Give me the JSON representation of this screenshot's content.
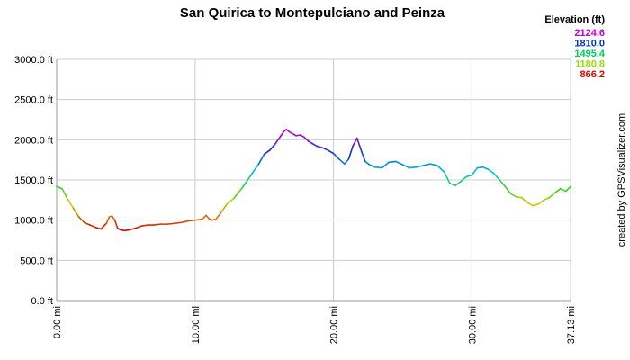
{
  "chart_data": {
    "type": "line",
    "title": "San Quirica to Montepulciano and Peinza",
    "xlabel": "",
    "ylabel": "",
    "xlim": [
      0,
      37.13
    ],
    "ylim": [
      0,
      3000
    ],
    "grid": true,
    "x_ticks": [
      {
        "value": 0,
        "label": "0.00 mi"
      },
      {
        "value": 10,
        "label": "10.00 mi"
      },
      {
        "value": 20,
        "label": "20.00 mi"
      },
      {
        "value": 30,
        "label": "30.00 mi"
      },
      {
        "value": 37.13,
        "label": "37.13 mi"
      }
    ],
    "y_ticks": [
      {
        "value": 0,
        "label": "0.0 ft"
      },
      {
        "value": 500,
        "label": "500.0 ft"
      },
      {
        "value": 1000,
        "label": "1000.0 ft"
      },
      {
        "value": 1500,
        "label": "1500.0 ft"
      },
      {
        "value": 2000,
        "label": "2000.0 ft"
      },
      {
        "value": 2500,
        "label": "2500.0 ft"
      },
      {
        "value": 3000,
        "label": "3000.0 ft"
      }
    ],
    "legend": {
      "title": "Elevation (ft)",
      "placement": "top-right",
      "entries": [
        {
          "label": "2124.6",
          "color": "#cc00cc"
        },
        {
          "label": "1810.0",
          "color": "#0033cc"
        },
        {
          "label": "1495.4",
          "color": "#00cc66"
        },
        {
          "label": "1180.8",
          "color": "#99dd00"
        },
        {
          "label": "866.2",
          "color": "#dd0000"
        }
      ]
    },
    "series": [
      {
        "x": [
          0,
          0.4,
          0.8,
          1.2,
          1.6,
          2.0,
          2.4,
          2.8,
          3.2,
          3.6,
          3.8,
          4.0,
          4.2,
          4.4,
          4.6,
          4.9,
          5.3,
          5.7,
          6.2,
          6.6,
          7.0,
          7.5,
          8.0,
          8.5,
          9.0,
          9.5,
          10.0,
          10.5,
          10.8,
          11.0,
          11.2,
          11.5,
          11.9,
          12.3,
          12.8,
          13.4,
          14.0,
          14.6,
          15.0,
          15.4,
          15.8,
          16.2,
          16.4,
          16.6,
          16.8,
          17.0,
          17.3,
          17.6,
          17.9,
          18.2,
          18.5,
          18.8,
          19.2,
          19.6,
          20.0,
          20.4,
          20.8,
          21.1,
          21.4,
          21.7,
          21.9,
          22.1,
          22.3,
          22.6,
          23.0,
          23.5,
          24.0,
          24.5,
          25.0,
          25.5,
          26.0,
          26.5,
          27.0,
          27.5,
          28.0,
          28.4,
          28.8,
          29.2,
          29.6,
          30.0,
          30.4,
          30.8,
          31.2,
          31.6,
          32.0,
          32.4,
          32.8,
          33.2,
          33.6,
          34.0,
          34.4,
          34.8,
          35.2,
          35.6,
          36.0,
          36.4,
          36.8,
          37.13
        ],
        "values": [
          1420,
          1390,
          1260,
          1150,
          1040,
          970,
          940,
          910,
          890,
          960,
          1040,
          1050,
          1000,
          900,
          880,
          870,
          880,
          900,
          930,
          940,
          940,
          950,
          950,
          960,
          970,
          990,
          1000,
          1010,
          1060,
          1020,
          1000,
          1010,
          1100,
          1200,
          1270,
          1400,
          1550,
          1700,
          1820,
          1870,
          1950,
          2050,
          2100,
          2130,
          2100,
          2080,
          2050,
          2060,
          2030,
          1980,
          1950,
          1920,
          1900,
          1870,
          1830,
          1760,
          1700,
          1760,
          1920,
          2020,
          1920,
          1820,
          1730,
          1690,
          1660,
          1650,
          1720,
          1730,
          1690,
          1650,
          1660,
          1680,
          1700,
          1680,
          1600,
          1460,
          1430,
          1480,
          1540,
          1560,
          1650,
          1660,
          1630,
          1580,
          1500,
          1420,
          1330,
          1290,
          1280,
          1220,
          1180,
          1200,
          1250,
          1280,
          1340,
          1390,
          1360,
          1420
        ]
      }
    ]
  },
  "credit": "created by GPSVisualizer.com"
}
